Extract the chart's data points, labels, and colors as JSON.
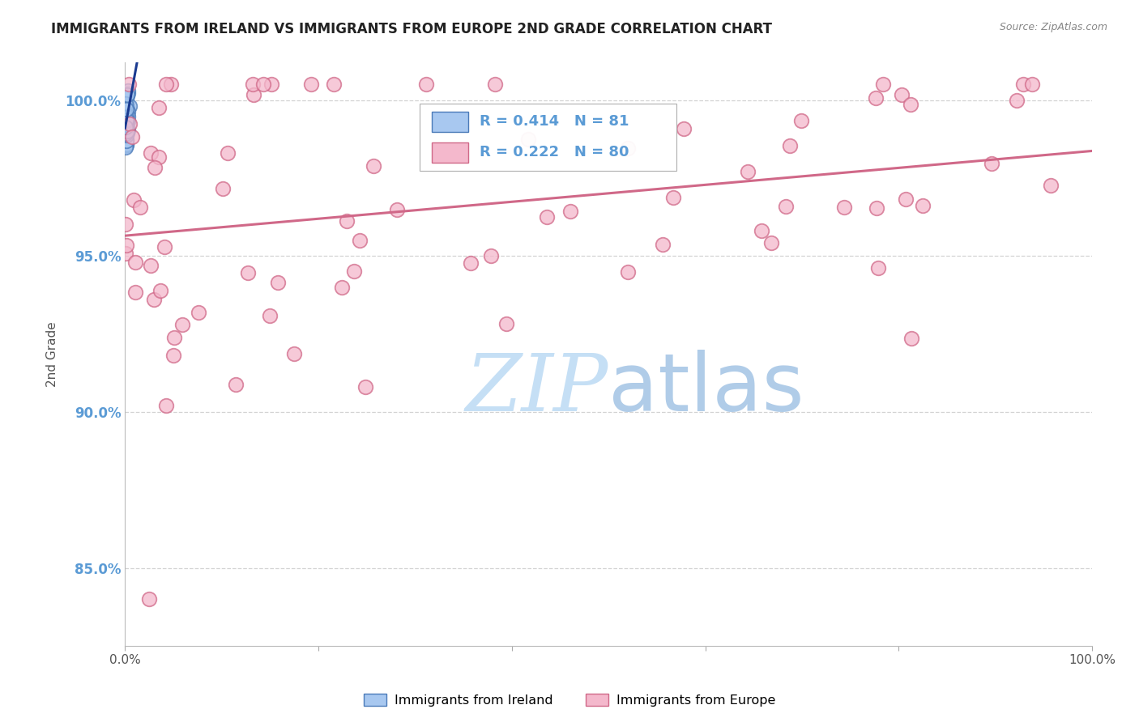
{
  "title": "IMMIGRANTS FROM IRELAND VS IMMIGRANTS FROM EUROPE 2ND GRADE CORRELATION CHART",
  "source_text": "Source: ZipAtlas.com",
  "ylabel": "2nd Grade",
  "xlim": [
    0.0,
    100.0
  ],
  "ylim": [
    82.5,
    101.2
  ],
  "yticks": [
    85.0,
    90.0,
    95.0,
    100.0
  ],
  "ytick_labels": [
    "85.0%",
    "90.0%",
    "95.0%",
    "100.0%"
  ],
  "R_ireland": 0.414,
  "N_ireland": 81,
  "R_europe": 0.222,
  "N_europe": 80,
  "ireland_color": "#a8c8f0",
  "ireland_edge_color": "#4a7ab8",
  "ireland_line_color": "#1a3a90",
  "europe_color": "#f4b8cc",
  "europe_edge_color": "#d06888",
  "europe_line_color": "#d06888",
  "background_color": "#ffffff",
  "grid_color": "#c8c8c8",
  "ytick_color": "#5b9bd5",
  "title_color": "#222222",
  "watermark_color": "#d4e8f8",
  "legend_ireland_label": "Immigrants from Ireland",
  "legend_europe_label": "Immigrants from Europe",
  "source_color": "#888888",
  "legend_text_color": "#222222",
  "ireland_R_color": "#5b9bd5",
  "europe_R_color": "#5b9bd5"
}
